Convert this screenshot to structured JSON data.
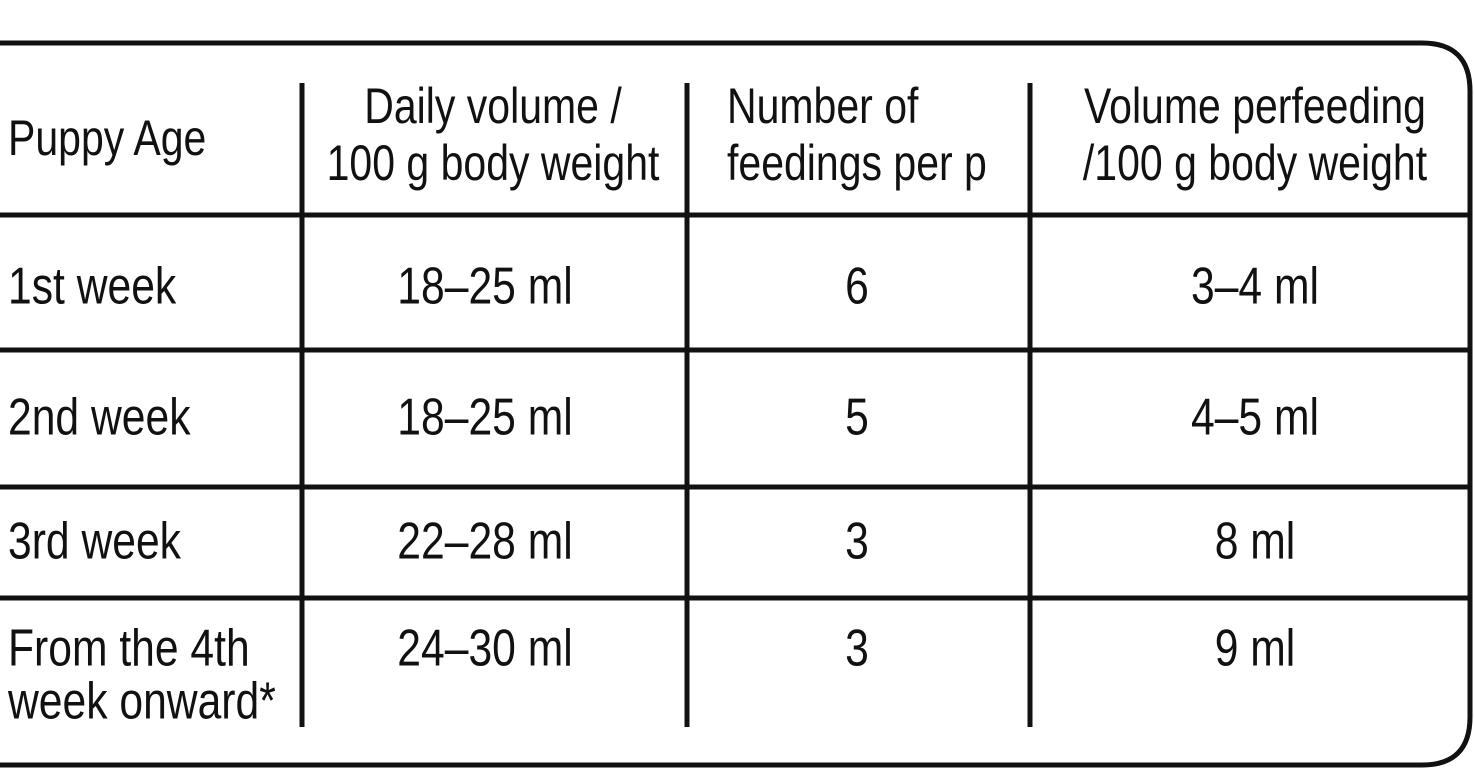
{
  "table": {
    "header": [
      [
        "Puppy Age"
      ],
      [
        "Daily volume /",
        "100 g body weight"
      ],
      [
        "Number of",
        "feedings per p"
      ],
      [
        "Volume perfeeding",
        "/100 g body weight"
      ]
    ],
    "rows": [
      [
        [
          "1st week"
        ],
        [
          "18–25 ml"
        ],
        [
          "6"
        ],
        [
          "3–4 ml"
        ]
      ],
      [
        [
          "2nd week"
        ],
        [
          "18–25 ml"
        ],
        [
          "5"
        ],
        [
          "4–5 ml"
        ]
      ],
      [
        [
          "3rd week"
        ],
        [
          "22–28 ml"
        ],
        [
          "3"
        ],
        [
          "8 ml"
        ]
      ],
      [
        [
          "From the 4th",
          "week onward*"
        ],
        [
          "24–30 ml"
        ],
        [
          "3"
        ],
        [
          "9 ml"
        ]
      ]
    ]
  }
}
